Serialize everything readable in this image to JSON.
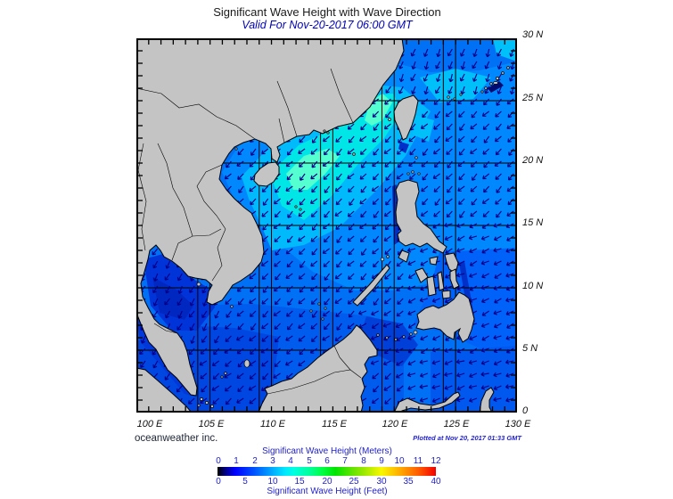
{
  "title": "Significant Wave Height with Wave Direction",
  "subtitle": "Valid For Nov-20-2017 06:00 GMT",
  "credit": "oceanweather inc.",
  "plotted_note": "Plotted at Nov 20, 2017 01:33 GMT",
  "axes": {
    "lon_labels": [
      "100 E",
      "105 E",
      "110 E",
      "115 E",
      "120 E",
      "125 E",
      "130 E"
    ],
    "lat_labels": [
      "30 N",
      "25 N",
      "20 N",
      "15 N",
      "10 N",
      "5 N",
      "0"
    ]
  },
  "colorbar": {
    "title_meters": "Significant Wave Height (Meters)",
    "title_feet": "Significant Wave Height (Feet)",
    "meter_ticks": [
      "0",
      "1",
      "2",
      "3",
      "4",
      "5",
      "6",
      "7",
      "8",
      "9",
      "10",
      "11",
      "12"
    ],
    "feet_ticks": [
      "0",
      "5",
      "10",
      "15",
      "20",
      "25",
      "30",
      "35",
      "40"
    ],
    "gradient_stops": [
      [
        "0%",
        "#000000"
      ],
      [
        "4%",
        "#000090"
      ],
      [
        "8%",
        "#0000ff"
      ],
      [
        "17%",
        "#0055ff"
      ],
      [
        "25%",
        "#00aaff"
      ],
      [
        "31%",
        "#00e8ff"
      ],
      [
        "35%",
        "#00ffe0"
      ],
      [
        "42%",
        "#00ff9c"
      ],
      [
        "48%",
        "#00ff44"
      ],
      [
        "54%",
        "#00e400"
      ],
      [
        "62%",
        "#66e400"
      ],
      [
        "67%",
        "#9ae800"
      ],
      [
        "75%",
        "#f8f800"
      ],
      [
        "83%",
        "#ffb000"
      ],
      [
        "92%",
        "#ff5c00"
      ],
      [
        "100%",
        "#f40000"
      ]
    ]
  },
  "map": {
    "land_color": "#c4c4c4",
    "coast_color": "#000000",
    "sea_base_color": "#0070f5",
    "grid_color": "#000000",
    "arrow_color": "#000088",
    "frame_color": "#000000"
  }
}
